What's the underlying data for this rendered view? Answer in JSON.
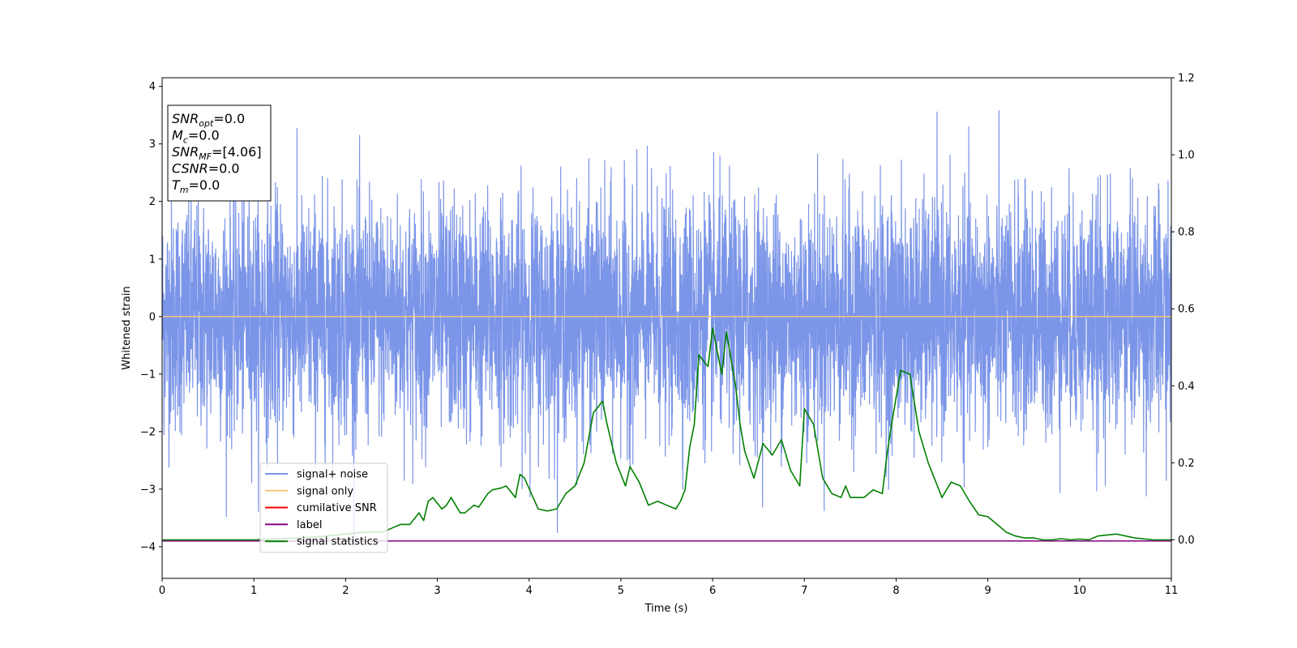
{
  "chart_data": {
    "type": "line",
    "xlabel": "Time (s)",
    "ylabel": "Whitened strain",
    "xlim": [
      0,
      11
    ],
    "ylim_left": [
      -4.55,
      4.15
    ],
    "ylim_right": [
      -0.1,
      1.2
    ],
    "x_ticks": [
      0,
      1,
      2,
      3,
      4,
      5,
      6,
      7,
      8,
      9,
      10,
      11
    ],
    "y_ticks_left": [
      -4,
      -3,
      -2,
      -1,
      0,
      1,
      2,
      3,
      4
    ],
    "y_ticks_right": [
      0.0,
      0.2,
      0.4,
      0.6,
      0.8,
      1.0,
      1.2
    ],
    "grid": false,
    "legend_location": "lower-left",
    "info_box": {
      "lines": [
        {
          "sym": "SNR",
          "sub": "opt",
          "value": "=0.0"
        },
        {
          "sym": "M",
          "sub": "c",
          "value": "=0.0"
        },
        {
          "sym": "SNR",
          "sub": "MF",
          "value": "=[4.06]"
        },
        {
          "sym": "CSNR",
          "sub": "",
          "value": "=0.0"
        },
        {
          "sym": "T",
          "sub": "m",
          "value": "=0.0"
        }
      ]
    },
    "series": [
      {
        "name": "signal+ noise",
        "axis": "left",
        "color": "#7b95e8",
        "description_values": {
          "x_start": 0,
          "x_end": 11,
          "sigma": 1.0,
          "y_max": 3.75,
          "y_min": -4.15
        }
      },
      {
        "name": "signal only",
        "axis": "left",
        "color": "#f5c77e",
        "x": [
          0,
          11
        ],
        "y": [
          0,
          0
        ]
      },
      {
        "name": "cumilative SNR",
        "axis": "left",
        "color": "#ff0000",
        "x": [],
        "y": []
      },
      {
        "name": "label",
        "axis": "left",
        "color": "#800080",
        "x": [
          0,
          11
        ],
        "y": [
          -3.9,
          -3.9
        ]
      },
      {
        "name": "signal statistics",
        "axis": "right",
        "color": "#008000",
        "x": [
          0,
          0.5,
          1.0,
          1.5,
          1.8,
          2.0,
          2.2,
          2.4,
          2.5,
          2.6,
          2.7,
          2.8,
          2.85,
          2.9,
          2.95,
          3.05,
          3.1,
          3.15,
          3.25,
          3.3,
          3.4,
          3.45,
          3.55,
          3.6,
          3.7,
          3.75,
          3.85,
          3.9,
          3.95,
          4.1,
          4.2,
          4.3,
          4.4,
          4.5,
          4.6,
          4.7,
          4.8,
          4.85,
          4.95,
          5.05,
          5.1,
          5.2,
          5.3,
          5.4,
          5.5,
          5.6,
          5.65,
          5.7,
          5.75,
          5.8,
          5.85,
          5.95,
          6.0,
          6.1,
          6.15,
          6.25,
          6.3,
          6.35,
          6.45,
          6.55,
          6.65,
          6.75,
          6.85,
          6.95,
          7.0,
          7.1,
          7.2,
          7.3,
          7.4,
          7.45,
          7.5,
          7.65,
          7.75,
          7.85,
          7.9,
          7.95,
          8.0,
          8.05,
          8.15,
          8.25,
          8.35,
          8.45,
          8.5,
          8.6,
          8.7,
          8.8,
          8.9,
          9.0,
          9.1,
          9.2,
          9.3,
          9.4,
          9.5,
          9.6,
          9.7,
          9.8,
          9.9,
          10.0,
          10.1,
          10.2,
          10.4,
          10.6,
          10.8,
          11.0
        ],
        "y": [
          0.0,
          0.0,
          0.0,
          0.005,
          0.01,
          0.015,
          0.02,
          0.02,
          0.03,
          0.04,
          0.04,
          0.07,
          0.05,
          0.1,
          0.11,
          0.08,
          0.09,
          0.11,
          0.07,
          0.07,
          0.09,
          0.085,
          0.12,
          0.13,
          0.135,
          0.14,
          0.11,
          0.17,
          0.16,
          0.08,
          0.075,
          0.08,
          0.12,
          0.14,
          0.2,
          0.33,
          0.36,
          0.3,
          0.2,
          0.14,
          0.19,
          0.15,
          0.09,
          0.1,
          0.09,
          0.08,
          0.1,
          0.13,
          0.24,
          0.3,
          0.48,
          0.45,
          0.55,
          0.43,
          0.54,
          0.4,
          0.3,
          0.23,
          0.16,
          0.25,
          0.22,
          0.26,
          0.18,
          0.14,
          0.34,
          0.3,
          0.16,
          0.12,
          0.11,
          0.14,
          0.11,
          0.11,
          0.13,
          0.12,
          0.22,
          0.3,
          0.37,
          0.44,
          0.43,
          0.28,
          0.2,
          0.14,
          0.11,
          0.15,
          0.14,
          0.1,
          0.065,
          0.06,
          0.04,
          0.02,
          0.01,
          0.005,
          0.005,
          0.0,
          0.0,
          0.003,
          0.0,
          0.002,
          0.0,
          0.01,
          0.015,
          0.005,
          0.0,
          0.0
        ]
      }
    ]
  }
}
